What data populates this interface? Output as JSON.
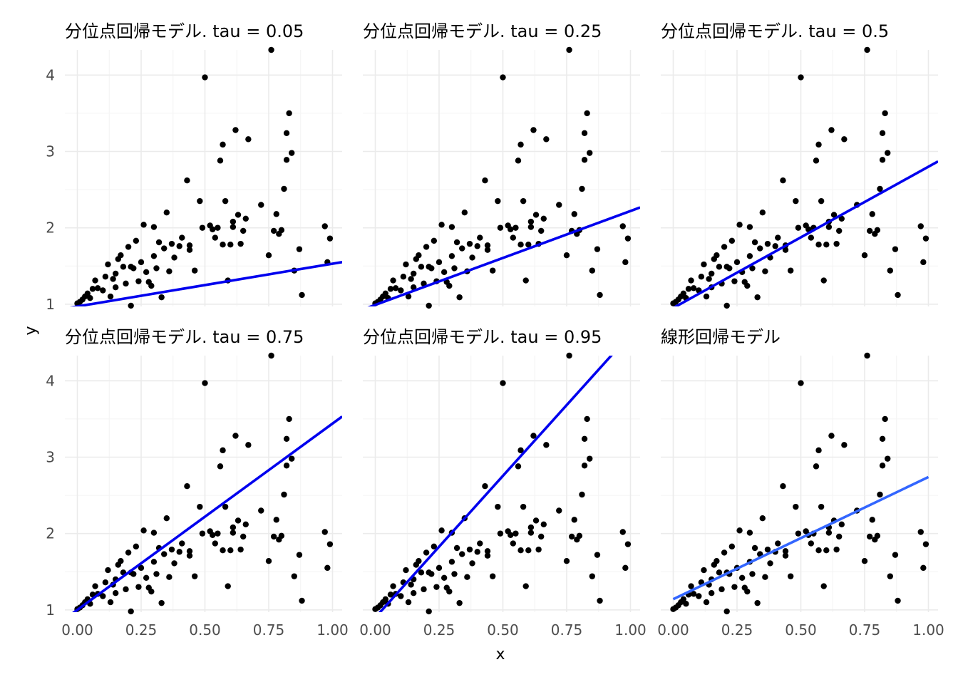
{
  "xlabel": "x",
  "ylabel": "y",
  "chart_data": {
    "type": "scatter",
    "layout": "facet-grid 2x3",
    "xlabel": "x",
    "ylabel": "y",
    "xlim": [
      0,
      1
    ],
    "ylim": [
      0.97,
      4.33
    ],
    "x_ticks": [
      0,
      0.25,
      0.5,
      0.75,
      1
    ],
    "x_tick_labels": [
      "0.00",
      "0.25",
      "0.50",
      "0.75",
      "1.00"
    ],
    "y_ticks": [
      1,
      2,
      3,
      4
    ],
    "y_tick_labels": [
      "1",
      "2",
      "3",
      "4"
    ],
    "grid": true,
    "points": {
      "x": [
        0.0,
        0.01,
        0.02,
        0.03,
        0.04,
        0.05,
        0.06,
        0.07,
        0.08,
        0.1,
        0.11,
        0.12,
        0.13,
        0.14,
        0.15,
        0.16,
        0.17,
        0.18,
        0.19,
        0.2,
        0.21,
        0.22,
        0.23,
        0.24,
        0.25,
        0.26,
        0.27,
        0.28,
        0.29,
        0.3,
        0.31,
        0.33,
        0.34,
        0.35,
        0.37,
        0.38,
        0.4,
        0.41,
        0.43,
        0.44,
        0.46,
        0.48,
        0.5,
        0.52,
        0.53,
        0.54,
        0.55,
        0.56,
        0.57,
        0.58,
        0.59,
        0.6,
        0.61,
        0.62,
        0.63,
        0.64,
        0.66,
        0.67,
        0.72,
        0.75,
        0.76,
        0.77,
        0.78,
        0.79,
        0.8,
        0.81,
        0.82,
        0.82,
        0.83,
        0.84,
        0.85,
        0.87,
        0.88,
        0.97,
        0.98,
        0.99,
        0.15,
        0.21,
        0.3,
        0.32,
        0.36,
        0.44,
        0.49,
        0.57,
        0.61,
        0.65
      ],
      "y": [
        1.01,
        1.03,
        1.06,
        1.1,
        1.14,
        1.08,
        1.2,
        1.31,
        1.21,
        1.18,
        1.36,
        1.52,
        1.1,
        1.33,
        1.4,
        1.59,
        1.64,
        1.49,
        1.27,
        1.75,
        0.98,
        1.47,
        1.83,
        1.3,
        1.55,
        2.04,
        1.42,
        1.29,
        1.24,
        2.01,
        1.47,
        1.09,
        1.73,
        2.2,
        1.79,
        1.61,
        1.76,
        1.87,
        2.62,
        1.71,
        1.44,
        2.35,
        3.97,
        2.03,
        1.98,
        1.87,
        2.0,
        2.88,
        3.09,
        2.35,
        1.31,
        1.78,
        2.01,
        3.28,
        2.17,
        1.79,
        2.12,
        3.16,
        2.3,
        1.64,
        4.33,
        1.96,
        2.18,
        1.92,
        1.97,
        2.51,
        3.24,
        2.89,
        3.5,
        2.98,
        1.44,
        1.72,
        1.12,
        2.02,
        1.55,
        1.86,
        1.22,
        1.49,
        1.63,
        1.81,
        1.43,
        1.77,
        2.0,
        1.78,
        2.08,
        1.96
      ]
    },
    "panels": [
      {
        "title": "分位点回帰モデル. tau = 0.05",
        "line": {
          "intercept": 0.97,
          "slope": 0.56,
          "color": "#0000ee"
        }
      },
      {
        "title": "分位点回帰モデル. tau = 0.25",
        "line": {
          "intercept": 0.99,
          "slope": 1.23,
          "color": "#0000ee"
        }
      },
      {
        "title": "分位点回帰モデル. tau = 0.5",
        "line": {
          "intercept": 0.95,
          "slope": 1.85,
          "color": "#0000ee"
        }
      },
      {
        "title": "分位点回帰モデル. tau = 0.75",
        "line": {
          "intercept": 1.0,
          "slope": 2.44,
          "color": "#0000ee"
        }
      },
      {
        "title": "分位点回帰モデル. tau = 0.95",
        "line": {
          "intercept": 0.9,
          "slope": 3.71,
          "color": "#0000ee"
        }
      },
      {
        "title": "線形回帰モデル",
        "line": {
          "intercept": 1.14,
          "slope": 1.6,
          "color": "#3366ff",
          "x_range": [
            0,
            1
          ]
        }
      }
    ],
    "point_color": "#000000"
  }
}
